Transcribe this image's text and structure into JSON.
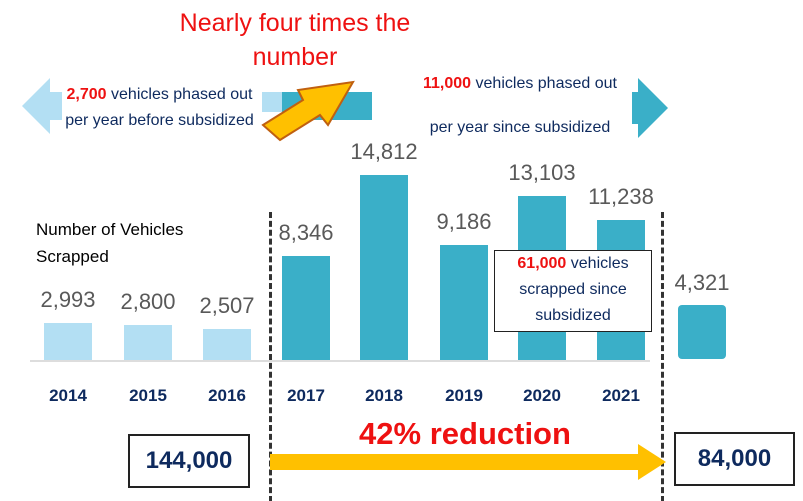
{
  "chart_data": {
    "type": "bar",
    "title": "",
    "ylabel": "Number of Vehicles Scrapped",
    "categories": [
      "2014",
      "2015",
      "2016",
      "2017",
      "2018",
      "2019",
      "2020",
      "2021",
      ""
    ],
    "values": [
      2993,
      2800,
      2507,
      8346,
      14812,
      9186,
      13103,
      11238,
      4321
    ],
    "value_labels": [
      "2,993",
      "2,800",
      "2,507",
      "8,346",
      "14,812",
      "9,186",
      "13,103",
      "11,238",
      "4,321"
    ],
    "colors": {
      "before": "#b3dff3",
      "after": "#3aafc8"
    },
    "grid": false
  },
  "headline": "Nearly four times the number",
  "before_note": {
    "number": "2,700",
    "text": "vehicles phased out per year before subsidized"
  },
  "after_note": {
    "number": "11,000",
    "line1": "vehicles phased out",
    "line2": "per year since subsidized"
  },
  "scrapped_note": {
    "number": "61,000",
    "text1": "vehicles",
    "text2": "scrapped since subsidized"
  },
  "before_total": "144,000",
  "after_total": "84,000",
  "reduction": "42% reduction",
  "colors": {
    "red": "#ee1111",
    "navy": "#0e2a5e",
    "arrow": "#ffc000"
  }
}
